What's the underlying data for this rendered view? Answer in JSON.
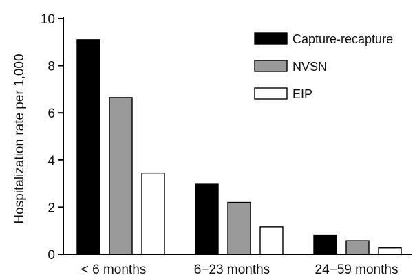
{
  "chart_data": {
    "type": "bar",
    "categories": [
      "< 6 months",
      "6−23 months",
      "24−59  months"
    ],
    "series": [
      {
        "name": "Capture-recapture",
        "values": [
          9.1,
          3.0,
          0.8
        ]
      },
      {
        "name": "NVSN",
        "values": [
          6.65,
          2.2,
          0.58
        ]
      },
      {
        "name": "EIP",
        "values": [
          3.45,
          1.17,
          0.27
        ]
      }
    ],
    "colors": [
      "#000000",
      "#9a9a9a",
      "#ffffff"
    ],
    "ylabel": "Hospitalization rate per 1,000",
    "xlabel": "",
    "ylim": [
      0,
      10
    ],
    "yticks": [
      0,
      2,
      4,
      6,
      8,
      10
    ],
    "legend_position": "top-right",
    "grid": false
  }
}
